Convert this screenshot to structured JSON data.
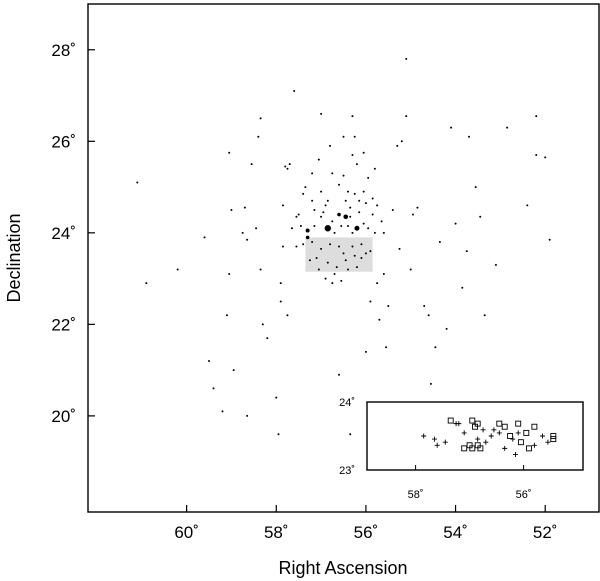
{
  "chart_data": [
    {
      "type": "scatter",
      "xlabel": "Right Ascension",
      "ylabel": "Declination",
      "xlim": [
        62.2,
        50.8
      ],
      "ylim": [
        17.9,
        29.0
      ],
      "x_ticks": [
        {
          "value": 60,
          "label": "60˚"
        },
        {
          "value": 58,
          "label": "58˚"
        },
        {
          "value": 56,
          "label": "56˚"
        },
        {
          "value": 54,
          "label": "54˚"
        },
        {
          "value": 52,
          "label": "52˚"
        }
      ],
      "y_ticks": [
        {
          "value": 20,
          "label": "20˚"
        },
        {
          "value": 22,
          "label": "22˚"
        },
        {
          "value": 24,
          "label": "24˚"
        },
        {
          "value": 26,
          "label": "26˚"
        },
        {
          "value": 28,
          "label": "28˚"
        }
      ],
      "grid": false,
      "legend": "none",
      "highlight_region": {
        "x": [
          57.35,
          55.85
        ],
        "y": [
          23.15,
          23.9
        ],
        "color": "#dddddd"
      },
      "bright_stars": [
        {
          "x": 56.85,
          "y": 24.1,
          "size": 3.2
        },
        {
          "x": 56.2,
          "y": 24.1,
          "size": 2.5
        },
        {
          "x": 56.45,
          "y": 24.35,
          "size": 2.3
        },
        {
          "x": 57.3,
          "y": 24.05,
          "size": 2.0
        },
        {
          "x": 56.6,
          "y": 24.4,
          "size": 1.8
        },
        {
          "x": 57.3,
          "y": 23.9,
          "size": 1.8
        }
      ],
      "stars": [
        [
          61.1,
          25.1
        ],
        [
          60.9,
          22.9
        ],
        [
          60.2,
          23.2
        ],
        [
          59.5,
          21.2
        ],
        [
          59.4,
          20.6
        ],
        [
          59.2,
          20.1
        ],
        [
          58.95,
          21.0
        ],
        [
          59.05,
          23.1
        ],
        [
          59.1,
          22.2
        ],
        [
          59.05,
          25.75
        ],
        [
          59.0,
          24.5
        ],
        [
          58.75,
          24.0
        ],
        [
          58.7,
          24.55
        ],
        [
          58.65,
          23.85
        ],
        [
          58.55,
          25.5
        ],
        [
          58.45,
          24.1
        ],
        [
          58.4,
          26.1
        ],
        [
          58.35,
          26.5
        ],
        [
          58.35,
          23.2
        ],
        [
          58.3,
          22.0
        ],
        [
          58.2,
          21.7
        ],
        [
          58.0,
          20.4
        ],
        [
          57.95,
          19.6
        ],
        [
          57.9,
          22.9
        ],
        [
          57.9,
          22.5
        ],
        [
          57.85,
          23.7
        ],
        [
          57.85,
          24.6
        ],
        [
          57.75,
          25.4
        ],
        [
          57.7,
          25.5
        ],
        [
          57.6,
          27.1
        ],
        [
          57.55,
          24.35
        ],
        [
          57.45,
          24.15
        ],
        [
          57.4,
          24.85
        ],
        [
          57.35,
          25.0
        ],
        [
          57.2,
          25.3
        ],
        [
          57.15,
          24.5
        ],
        [
          57.05,
          25.6
        ],
        [
          57.05,
          23.2
        ],
        [
          57.0,
          26.6
        ],
        [
          56.9,
          23.0
        ],
        [
          56.85,
          24.7
        ],
        [
          56.8,
          25.9
        ],
        [
          56.7,
          23.1
        ],
        [
          56.6,
          25.05
        ],
        [
          56.5,
          25.25
        ],
        [
          56.45,
          23.4
        ],
        [
          56.4,
          24.9
        ],
        [
          56.35,
          24.55
        ],
        [
          56.3,
          26.55
        ],
        [
          56.25,
          26.1
        ],
        [
          56.2,
          25.5
        ],
        [
          56.15,
          24.7
        ],
        [
          56.1,
          23.45
        ],
        [
          56.05,
          25.75
        ],
        [
          56.0,
          24.65
        ],
        [
          55.95,
          25.2
        ],
        [
          55.9,
          23.6
        ],
        [
          55.85,
          24.75
        ],
        [
          55.8,
          25.4
        ],
        [
          55.75,
          22.9
        ],
        [
          55.7,
          22.1
        ],
        [
          55.65,
          24.25
        ],
        [
          55.55,
          21.5
        ],
        [
          55.5,
          22.4
        ],
        [
          55.4,
          24.5
        ],
        [
          55.3,
          25.9
        ],
        [
          55.25,
          23.65
        ],
        [
          55.2,
          26.0
        ],
        [
          55.1,
          27.8
        ],
        [
          55.1,
          26.55
        ],
        [
          55.0,
          23.2
        ],
        [
          54.95,
          24.4
        ],
        [
          54.85,
          24.55
        ],
        [
          54.7,
          22.4
        ],
        [
          54.6,
          22.2
        ],
        [
          54.45,
          21.5
        ],
        [
          54.35,
          23.8
        ],
        [
          54.2,
          21.9
        ],
        [
          54.1,
          26.3
        ],
        [
          54.0,
          24.2
        ],
        [
          53.85,
          22.8
        ],
        [
          53.75,
          23.6
        ],
        [
          53.7,
          26.1
        ],
        [
          53.55,
          25.0
        ],
        [
          53.45,
          24.35
        ],
        [
          53.35,
          22.2
        ],
        [
          53.1,
          23.3
        ],
        [
          52.85,
          26.3
        ],
        [
          52.4,
          24.6
        ],
        [
          52.2,
          26.55
        ],
        [
          52.2,
          25.7
        ],
        [
          52.0,
          25.65
        ],
        [
          51.9,
          23.85
        ],
        [
          58.65,
          20.0
        ],
        [
          56.35,
          19.6
        ],
        [
          59.6,
          23.9
        ],
        [
          57.75,
          22.2
        ],
        [
          56.6,
          20.9
        ],
        [
          54.55,
          20.7
        ],
        [
          55.9,
          22.5
        ],
        [
          56.0,
          21.4
        ],
        [
          57.5,
          24.4
        ],
        [
          57.15,
          24.15
        ],
        [
          57.0,
          24.35
        ],
        [
          56.95,
          24.45
        ],
        [
          56.75,
          24.25
        ],
        [
          56.7,
          24.0
        ],
        [
          56.55,
          24.15
        ],
        [
          56.4,
          24.15
        ],
        [
          56.35,
          24.35
        ],
        [
          56.3,
          24.0
        ],
        [
          56.15,
          24.45
        ],
        [
          56.05,
          24.2
        ],
        [
          55.95,
          24.1
        ],
        [
          57.4,
          23.75
        ],
        [
          57.2,
          23.8
        ],
        [
          57.0,
          23.65
        ],
        [
          56.8,
          23.75
        ],
        [
          56.6,
          23.7
        ],
        [
          56.5,
          23.55
        ],
        [
          56.3,
          23.7
        ],
        [
          56.1,
          23.75
        ],
        [
          56.0,
          23.55
        ],
        [
          57.1,
          23.45
        ],
        [
          56.85,
          23.35
        ],
        [
          56.65,
          23.25
        ],
        [
          56.4,
          23.2
        ],
        [
          56.2,
          23.25
        ],
        [
          56.75,
          22.9
        ],
        [
          56.55,
          22.95
        ],
        [
          57.25,
          23.4
        ],
        [
          56.25,
          23.5
        ],
        [
          56.9,
          24.6
        ],
        [
          56.45,
          24.7
        ],
        [
          56.25,
          24.85
        ],
        [
          56.05,
          24.9
        ],
        [
          57.65,
          24.1
        ],
        [
          57.55,
          23.7
        ],
        [
          55.85,
          24.4
        ],
        [
          55.8,
          24.0
        ],
        [
          57.8,
          25.45
        ],
        [
          56.75,
          25.3
        ],
        [
          56.3,
          25.7
        ],
        [
          55.6,
          24.0
        ],
        [
          56.5,
          26.1
        ],
        [
          57.2,
          24.7
        ],
        [
          57.0,
          24.9
        ],
        [
          55.75,
          24.6
        ],
        [
          55.6,
          23.1
        ]
      ]
    },
    {
      "type": "scatter",
      "inset": true,
      "xlim": [
        58.9,
        54.9
      ],
      "ylim": [
        22.95,
        24.05
      ],
      "x_ticks": [
        {
          "value": 58,
          "label": "58˚"
        },
        {
          "value": 56,
          "label": "56˚"
        }
      ],
      "y_ticks": [
        {
          "value": 24,
          "label": "24˚"
        },
        {
          "value": 23,
          "label": "23˚"
        }
      ],
      "squares": [
        [
          57.35,
          23.75
        ],
        [
          56.95,
          23.75
        ],
        [
          56.9,
          23.65
        ],
        [
          56.85,
          23.7
        ],
        [
          56.45,
          23.7
        ],
        [
          56.35,
          23.65
        ],
        [
          56.1,
          23.7
        ],
        [
          55.95,
          23.55
        ],
        [
          55.8,
          23.65
        ],
        [
          56.25,
          23.5
        ],
        [
          56.05,
          23.4
        ],
        [
          55.9,
          23.3
        ],
        [
          55.45,
          23.5
        ],
        [
          55.45,
          23.45
        ],
        [
          57.0,
          23.35
        ],
        [
          56.95,
          23.3
        ],
        [
          56.85,
          23.35
        ],
        [
          56.8,
          23.3
        ],
        [
          57.1,
          23.3
        ]
      ],
      "pluses": [
        [
          57.85,
          23.5
        ],
        [
          57.65,
          23.45
        ],
        [
          57.6,
          23.35
        ],
        [
          57.45,
          23.4
        ],
        [
          57.25,
          23.7
        ],
        [
          57.1,
          23.55
        ],
        [
          56.85,
          23.45
        ],
        [
          56.7,
          23.4
        ],
        [
          56.6,
          23.5
        ],
        [
          56.55,
          23.6
        ],
        [
          56.45,
          23.55
        ],
        [
          56.2,
          23.45
        ],
        [
          56.1,
          23.55
        ],
        [
          56.35,
          23.3
        ],
        [
          56.15,
          23.2
        ],
        [
          55.8,
          23.35
        ],
        [
          55.65,
          23.5
        ],
        [
          57.2,
          23.7
        ],
        [
          56.75,
          23.6
        ],
        [
          55.55,
          23.4
        ]
      ]
    }
  ]
}
